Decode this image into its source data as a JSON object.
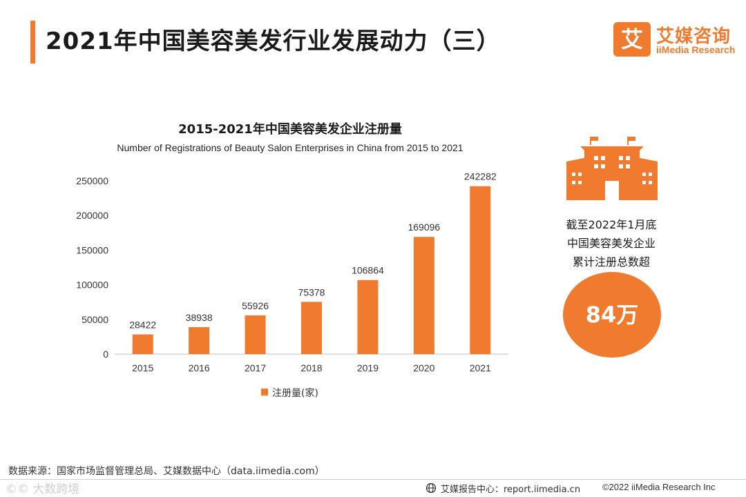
{
  "header": {
    "title": "2021年中国美容美发行业发展动力（三）",
    "brand_mark": "艾",
    "brand_cn": "艾媒咨询",
    "brand_en": "iiMedia Research"
  },
  "chart_data": {
    "type": "bar",
    "title": "2015-2021年中国美容美发企业注册量",
    "subtitle": "Number of Registrations of Beauty Salon Enterprises in China from 2015 to 2021",
    "categories": [
      "2015",
      "2016",
      "2017",
      "2018",
      "2019",
      "2020",
      "2021"
    ],
    "series": [
      {
        "name": "注册量(家)",
        "values": [
          28422,
          38938,
          55926,
          75378,
          106864,
          169096,
          242282
        ]
      }
    ],
    "yticks": [
      0,
      50000,
      100000,
      150000,
      200000,
      250000
    ],
    "ylim": [
      0,
      250000
    ],
    "xlabel": "",
    "ylabel": "",
    "grid": false,
    "legend_position": "bottom",
    "bar_color": "#f07a2e"
  },
  "side": {
    "caption_lines": [
      "截至2022年1月底",
      "中国美容美发企业",
      "累计注册总数超"
    ],
    "value": "84万",
    "icon": "building-icon",
    "accent": "#f07a2e"
  },
  "footer": {
    "source": "数据来源：国家市场监督管理总局、艾媒数据中心（data.iimedia.com）",
    "watermark": "©© 大数跨境",
    "report": "艾媒报告中心：report.iimedia.cn",
    "copyright": "©2022  iiMedia Research  Inc"
  }
}
